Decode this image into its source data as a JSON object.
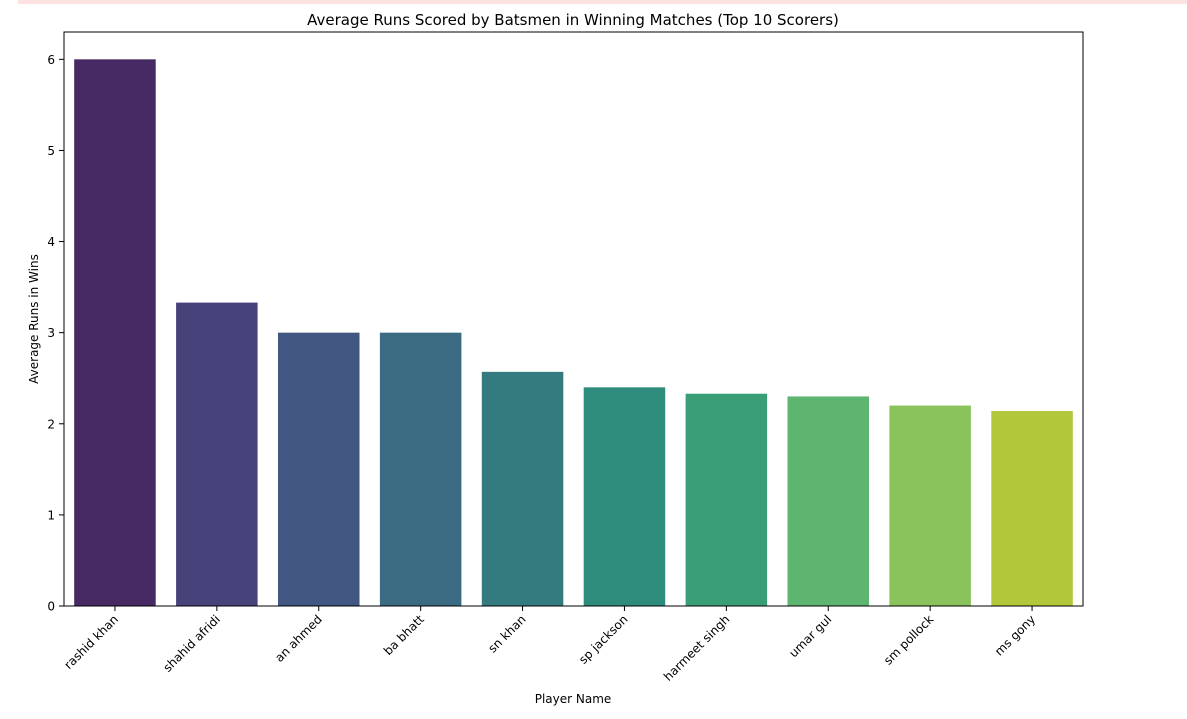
{
  "colors": {
    "warning_strip": "#fde2e2",
    "axis": "#000000",
    "background": "#ffffff"
  },
  "chart_data": {
    "type": "bar",
    "title": "Average Runs Scored by Batsmen in Winning Matches (Top 10 Scorers)",
    "xlabel": "Player Name",
    "ylabel": "Average Runs in Wins",
    "categories": [
      "rashid khan",
      "shahid afridi",
      "an ahmed",
      "ba bhatt",
      "sn khan",
      "sp jackson",
      "harmeet singh",
      "umar gul",
      "sm pollock",
      "ms gony"
    ],
    "values": [
      6.0,
      3.33,
      3.0,
      3.0,
      2.57,
      2.4,
      2.33,
      2.3,
      2.2,
      2.14
    ],
    "colors": [
      "#472a63",
      "#48427b",
      "#415680",
      "#3a6b82",
      "#337b7f",
      "#2e8c7c",
      "#3a9f77",
      "#5db56f",
      "#8ac35c",
      "#b2c73a"
    ],
    "ylim": [
      0,
      6.3
    ],
    "yticks": [
      0,
      1,
      2,
      3,
      4,
      5,
      6
    ],
    "grid": false,
    "legend": "none"
  }
}
